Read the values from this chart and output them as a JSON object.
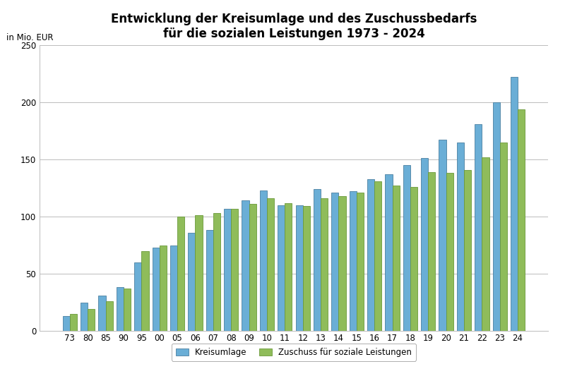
{
  "title_line1": "Entwicklung der Kreisumlage und des Zuschussbedarfs",
  "title_line2": "für die sozialen Leistungen 1973 - 2024",
  "ylabel": "in Mio. EUR",
  "categories": [
    "73",
    "80",
    "85",
    "90",
    "95",
    "00",
    "05",
    "06",
    "07",
    "08",
    "09",
    "10",
    "11",
    "12",
    "13",
    "14",
    "15",
    "16",
    "17",
    "18",
    "19",
    "20",
    "21",
    "22",
    "23",
    "24"
  ],
  "kreisumlage": [
    13,
    25,
    31,
    38,
    60,
    73,
    75,
    86,
    88,
    107,
    114,
    123,
    110,
    110,
    124,
    121,
    122,
    133,
    137,
    145,
    151,
    167,
    165,
    181,
    200,
    222
  ],
  "zuschuss": [
    15,
    19,
    26,
    37,
    70,
    75,
    100,
    101,
    103,
    107,
    111,
    116,
    112,
    109,
    116,
    118,
    121,
    131,
    127,
    126,
    139,
    138,
    141,
    152,
    165,
    194
  ],
  "bar_color_kreisumlage": "#6aaed6",
  "bar_color_zuschuss": "#8fbc5a",
  "bar_edge_color": "#4a7fa0",
  "bar_edge_color2": "#6a9a3a",
  "legend_kreisumlage": "Kreisumlage",
  "legend_zuschuss": "Zuschuss für soziale Leistungen",
  "ylim": [
    0,
    250
  ],
  "yticks": [
    0,
    50,
    100,
    150,
    200,
    250
  ],
  "grid_color": "#bbbbbb",
  "background_color": "#ffffff",
  "title_fontsize": 12,
  "axis_fontsize": 8.5,
  "legend_fontsize": 8.5
}
